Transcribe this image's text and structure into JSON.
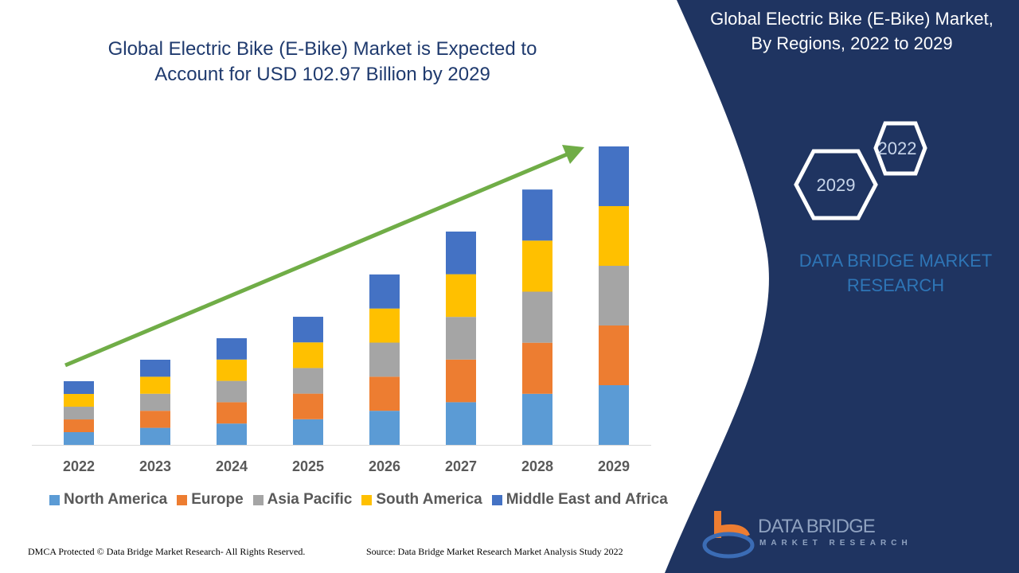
{
  "chart_data": {
    "type": "bar",
    "stacked": true,
    "title": "Global Electric Bike (E-Bike) Market is Expected to Account for USD 102.97 Billion by 2029",
    "title_lines": [
      "Global Electric Bike (E-Bike) Market is Expected to",
      "Account for USD 102.97 Billion by 2029"
    ],
    "xlabel": "",
    "ylabel": "",
    "ylim": [
      0,
      102.97
    ],
    "grid": false,
    "legend_position": "bottom",
    "categories": [
      "2022",
      "2023",
      "2024",
      "2025",
      "2026",
      "2027",
      "2028",
      "2029"
    ],
    "series": [
      {
        "name": "North America",
        "color": "#5b9bd5",
        "values": [
          4.39,
          5.88,
          7.36,
          8.84,
          11.76,
          14.72,
          17.62,
          20.59
        ]
      },
      {
        "name": "Europe",
        "color": "#ed7d31",
        "values": [
          4.39,
          5.88,
          7.36,
          8.84,
          11.76,
          14.72,
          17.62,
          20.6
        ]
      },
      {
        "name": "Asia Pacific",
        "color": "#a5a5a5",
        "values": [
          4.39,
          5.88,
          7.36,
          8.84,
          11.76,
          14.72,
          17.62,
          20.59
        ]
      },
      {
        "name": "South America",
        "color": "#ffc000",
        "values": [
          4.4,
          5.87,
          7.36,
          8.84,
          11.76,
          14.72,
          17.62,
          20.6
        ]
      },
      {
        "name": "Middle East and Africa",
        "color": "#4472c4",
        "values": [
          4.4,
          5.87,
          7.36,
          8.84,
          11.76,
          14.72,
          17.62,
          20.59
        ]
      }
    ],
    "trend_arrow_color": "#70ad47"
  },
  "panel": {
    "title_lines": [
      "Global Electric Bike (E-Bike) Market,",
      "By Regions, 2022 to 2029"
    ],
    "hex_labels": [
      "2022",
      "2029"
    ],
    "brand_lines": [
      "DATA BRIDGE MARKET",
      "RESEARCH"
    ],
    "background": "#1f3461"
  },
  "logo": {
    "name": "DATA BRIDGE",
    "sub": "MARKET RESEARCH"
  },
  "footer": {
    "left": "DMCA Protected © Data Bridge Market Research- All Rights Reserved.",
    "right": "Source: Data Bridge Market Research Market Analysis Study 2022"
  }
}
